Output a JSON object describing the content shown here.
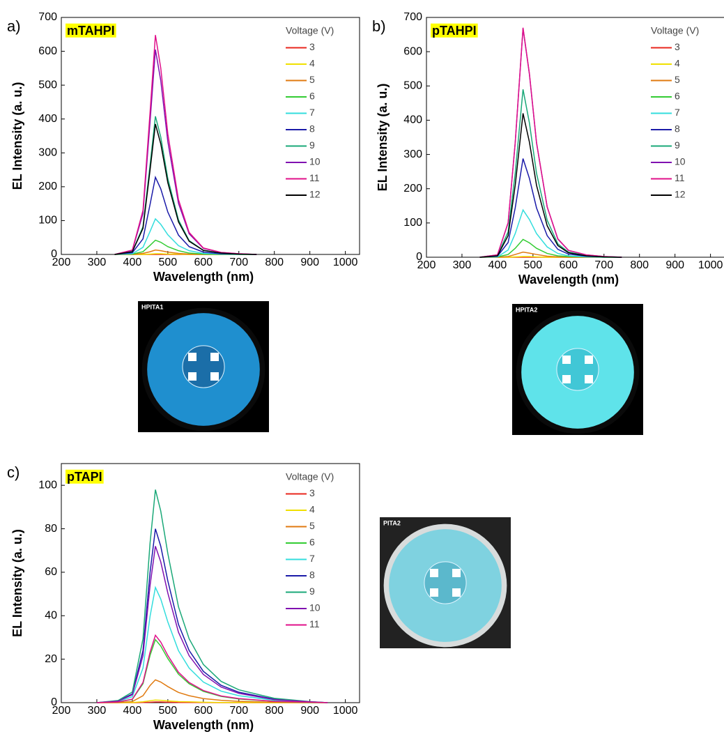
{
  "chart_data": [
    {
      "type": "line",
      "panel_label": "a)",
      "title": "mTAHPI",
      "legend_title": "Voltage (V)",
      "xlabel": "Wavelength (nm)",
      "ylabel": "EL Intensity (a. u.)",
      "photo_label": "HPITA1",
      "xlim": [
        200,
        1040
      ],
      "xticks": [
        200,
        300,
        400,
        500,
        600,
        700,
        800,
        900,
        1000
      ],
      "ylim": [
        0,
        700
      ],
      "yticks": [
        0,
        100,
        200,
        300,
        400,
        500,
        600,
        700
      ],
      "x": [
        350,
        400,
        430,
        450,
        465,
        480,
        500,
        530,
        560,
        600,
        650,
        700,
        750
      ],
      "series": [
        {
          "name": "3",
          "color": "#e8261c",
          "values": [
            0,
            0,
            0,
            0,
            0,
            0,
            0,
            0,
            0,
            0,
            0,
            0,
            0
          ]
        },
        {
          "name": "4",
          "color": "#f0e000",
          "values": [
            0,
            0,
            0,
            1,
            2,
            2,
            1,
            1,
            0,
            0,
            0,
            0,
            0
          ]
        },
        {
          "name": "5",
          "color": "#e07a10",
          "values": [
            0,
            0,
            3,
            8,
            13,
            11,
            7,
            3,
            1,
            0,
            0,
            0,
            0
          ]
        },
        {
          "name": "6",
          "color": "#33cc33",
          "values": [
            0,
            1,
            8,
            27,
            42,
            36,
            23,
            11,
            4,
            1,
            0,
            0,
            0
          ]
        },
        {
          "name": "7",
          "color": "#33dddd",
          "values": [
            0,
            2,
            21,
            68,
            105,
            89,
            58,
            26,
            11,
            3,
            1,
            0,
            0
          ]
        },
        {
          "name": "8",
          "color": "#1a1aa8",
          "values": [
            0,
            5,
            46,
            148,
            228,
            194,
            125,
            57,
            23,
            7,
            2,
            1,
            0
          ]
        },
        {
          "name": "9",
          "color": "#1aa878",
          "values": [
            0,
            8,
            82,
            265,
            408,
            347,
            224,
            102,
            41,
            12,
            4,
            1,
            0
          ]
        },
        {
          "name": "10",
          "color": "#8010b0",
          "values": [
            0,
            12,
            121,
            393,
            605,
            514,
            333,
            151,
            61,
            18,
            6,
            2,
            0
          ]
        },
        {
          "name": "11",
          "color": "#e0108a",
          "values": [
            0,
            13,
            130,
            421,
            648,
            551,
            356,
            162,
            65,
            19,
            6,
            2,
            0
          ]
        },
        {
          "name": "12",
          "color": "#000000",
          "values": [
            0,
            8,
            77,
            250,
            385,
            327,
            212,
            96,
            39,
            12,
            4,
            1,
            0
          ]
        }
      ]
    },
    {
      "type": "line",
      "panel_label": "b)",
      "title": "pTAHPI",
      "legend_title": "Voltage (V)",
      "xlabel": "Wavelength (nm)",
      "ylabel": "EL Intensity (a. u.)",
      "photo_label": "HPITA2",
      "xlim": [
        200,
        1040
      ],
      "xticks": [
        200,
        300,
        400,
        500,
        600,
        700,
        800,
        900,
        1000
      ],
      "ylim": [
        0,
        700
      ],
      "yticks": [
        0,
        100,
        200,
        300,
        400,
        500,
        600,
        700
      ],
      "x": [
        350,
        400,
        430,
        450,
        472,
        490,
        510,
        540,
        570,
        600,
        650,
        700,
        750
      ],
      "series": [
        {
          "name": "3",
          "color": "#e8261c",
          "values": [
            0,
            0,
            0,
            0,
            0,
            0,
            0,
            0,
            0,
            0,
            0,
            0,
            0
          ]
        },
        {
          "name": "4",
          "color": "#f0e000",
          "values": [
            0,
            0,
            0,
            1,
            2,
            2,
            1,
            0,
            0,
            0,
            0,
            0,
            0
          ]
        },
        {
          "name": "5",
          "color": "#e07a10",
          "values": [
            0,
            0,
            2,
            8,
            15,
            12,
            8,
            3,
            1,
            0,
            0,
            0,
            0
          ]
        },
        {
          "name": "6",
          "color": "#33cc33",
          "values": [
            0,
            1,
            8,
            26,
            52,
            42,
            26,
            11,
            4,
            2,
            1,
            0,
            0
          ]
        },
        {
          "name": "7",
          "color": "#33dddd",
          "values": [
            0,
            1,
            21,
            69,
            138,
            110,
            69,
            30,
            11,
            4,
            1,
            0,
            0
          ]
        },
        {
          "name": "8",
          "color": "#1a1aa8",
          "values": [
            0,
            3,
            43,
            144,
            288,
            230,
            144,
            63,
            23,
            9,
            3,
            1,
            0
          ]
        },
        {
          "name": "9",
          "color": "#1aa878",
          "values": [
            0,
            5,
            74,
            245,
            490,
            392,
            245,
            108,
            39,
            15,
            5,
            1,
            0
          ]
        },
        {
          "name": "10",
          "color": "#8010b0",
          "values": [
            0,
            7,
            100,
            334,
            668,
            534,
            334,
            147,
            53,
            20,
            7,
            2,
            0
          ]
        },
        {
          "name": "11",
          "color": "#e0108a",
          "values": [
            0,
            7,
            101,
            335,
            670,
            536,
            335,
            147,
            54,
            20,
            7,
            2,
            0
          ]
        },
        {
          "name": "12",
          "color": "#000000",
          "values": [
            0,
            4,
            63,
            210,
            420,
            336,
            210,
            92,
            34,
            13,
            4,
            1,
            0
          ]
        }
      ]
    },
    {
      "type": "line",
      "panel_label": "c)",
      "title": "pTAPI",
      "legend_title": "Voltage (V)",
      "xlabel": "Wavelength (nm)",
      "ylabel": "EL Intensity (a. u.)",
      "photo_label": "PITA2",
      "xlim": [
        200,
        1040
      ],
      "xticks": [
        200,
        300,
        400,
        500,
        600,
        700,
        800,
        900,
        1000
      ],
      "ylim": [
        0,
        110
      ],
      "yticks": [
        0,
        20,
        40,
        60,
        80,
        100
      ],
      "x": [
        300,
        360,
        400,
        430,
        450,
        465,
        480,
        500,
        530,
        560,
        600,
        650,
        700,
        800,
        900,
        950
      ],
      "series": [
        {
          "name": "3",
          "color": "#e8261c",
          "values": [
            0,
            0,
            0,
            0.1,
            0.2,
            0.3,
            0.3,
            0.2,
            0.1,
            0.1,
            0.1,
            0,
            0,
            0,
            0,
            0
          ]
        },
        {
          "name": "4",
          "color": "#f0e000",
          "values": [
            0,
            0,
            0.1,
            0.4,
            0.9,
            1.2,
            1.1,
            0.8,
            0.5,
            0.4,
            0.2,
            0.1,
            0.1,
            0,
            0,
            0
          ]
        },
        {
          "name": "5",
          "color": "#e07a10",
          "values": [
            0,
            0.1,
            0.5,
            3.2,
            7.9,
            10.5,
            9.5,
            7.4,
            4.7,
            3.2,
            1.9,
            1.1,
            0.6,
            0.2,
            0.1,
            0
          ]
        },
        {
          "name": "6",
          "color": "#33cc33",
          "values": [
            0,
            0.3,
            1.5,
            8.7,
            21.8,
            29,
            26.1,
            20.3,
            13.1,
            8.7,
            5.2,
            2.9,
            1.7,
            0.6,
            0.1,
            0
          ]
        },
        {
          "name": "7",
          "color": "#33dddd",
          "values": [
            0,
            0.5,
            2.7,
            15.9,
            39.8,
            53,
            47.7,
            37.1,
            23.9,
            15.9,
            9.5,
            5.3,
            3.2,
            1.1,
            0.3,
            0
          ]
        },
        {
          "name": "8",
          "color": "#1a1aa8",
          "values": [
            0,
            0.8,
            4,
            24,
            60,
            80,
            72,
            56,
            36,
            24,
            14.4,
            8,
            4.8,
            1.6,
            0.4,
            0
          ]
        },
        {
          "name": "9",
          "color": "#1aa878",
          "values": [
            0,
            1,
            4.9,
            29.4,
            73.5,
            98,
            88.2,
            68.6,
            44.1,
            29.4,
            17.6,
            9.8,
            5.9,
            2,
            0.5,
            0
          ]
        },
        {
          "name": "10",
          "color": "#8010b0",
          "values": [
            0,
            0.7,
            3.6,
            21.6,
            54,
            72,
            64.8,
            50.4,
            32.4,
            21.6,
            13,
            7.2,
            4.3,
            1.4,
            0.4,
            0
          ]
        },
        {
          "name": "11",
          "color": "#e0108a",
          "values": [
            0,
            0.3,
            1.6,
            9.3,
            23.3,
            31,
            27.9,
            21.7,
            14,
            9.3,
            5.6,
            3.1,
            1.9,
            0.6,
            0.2,
            0
          ]
        }
      ]
    }
  ]
}
